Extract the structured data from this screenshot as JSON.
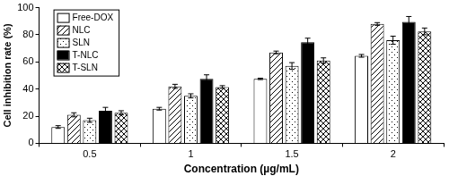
{
  "chart_data": {
    "type": "bar",
    "categories": [
      "0.5",
      "1",
      "1.5",
      "2"
    ],
    "x_label": "Concentration (µg/mL)",
    "y_label": "Cell inhibition rate (%)",
    "series": [
      {
        "name": "Free-DOX",
        "color": "#ffffff",
        "values": [
          12,
          25.5,
          47.5,
          64.5
        ],
        "errors": [
          1,
          1,
          0.5,
          1
        ]
      },
      {
        "name": "NLC",
        "color": "#ffffff",
        "values": [
          21,
          42,
          67,
          88
        ],
        "errors": [
          1.5,
          1.5,
          1,
          1
        ]
      },
      {
        "name": "SLN",
        "color": "#ffffff",
        "values": [
          17,
          35,
          57,
          76
        ],
        "errors": [
          1.5,
          1.5,
          2.5,
          3
        ]
      },
      {
        "name": "T-NLC",
        "color": "#000000",
        "values": [
          24,
          47.5,
          74.5,
          89.5
        ],
        "errors": [
          2.5,
          3,
          3,
          4
        ]
      },
      {
        "name": "T-SLN",
        "color": "#ffffff",
        "values": [
          22.5,
          41.5,
          61,
          82.5
        ],
        "errors": [
          1.5,
          1,
          2,
          2.5
        ]
      }
    ],
    "ylim": [
      0,
      100
    ],
    "yticks": [
      0,
      20,
      40,
      60,
      80,
      100
    ],
    "grid": false,
    "legend": "top-left"
  }
}
